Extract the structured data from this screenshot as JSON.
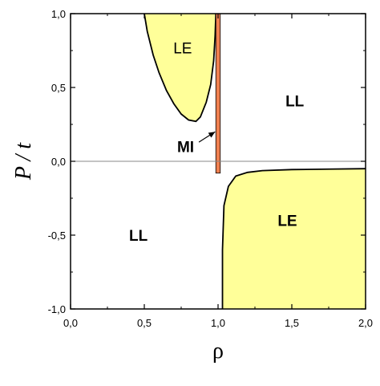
{
  "chart_data": {
    "type": "area",
    "title": "",
    "xlabel": "ρ",
    "ylabel": "P / t",
    "xlim": [
      0.0,
      2.0
    ],
    "ylim": [
      -1.0,
      1.0
    ],
    "x_ticks": [
      "0,0",
      "0,5",
      "1,0",
      "1,5",
      "2,0"
    ],
    "y_ticks": [
      "1,0",
      "0,5",
      "0,0",
      "-0,5",
      "-1,0"
    ],
    "grid": false,
    "colors": {
      "le_fill": "#ffff99",
      "mi_fill": "#f08050",
      "boundary": "#000000",
      "zero_line": "#888888"
    },
    "regions": [
      {
        "name": "LE",
        "label": "LE",
        "boundary": [
          [
            0.5,
            1.0
          ],
          [
            0.52,
            0.88
          ],
          [
            0.56,
            0.72
          ],
          [
            0.6,
            0.6
          ],
          [
            0.65,
            0.48
          ],
          [
            0.7,
            0.39
          ],
          [
            0.75,
            0.32
          ],
          [
            0.8,
            0.28
          ],
          [
            0.85,
            0.27
          ],
          [
            0.88,
            0.3
          ],
          [
            0.92,
            0.4
          ],
          [
            0.95,
            0.52
          ],
          [
            0.97,
            0.68
          ],
          [
            0.98,
            0.85
          ],
          [
            0.985,
            1.0
          ]
        ]
      },
      {
        "name": "LE",
        "label": "LE",
        "boundary": [
          [
            1.03,
            -1.0
          ],
          [
            1.03,
            -0.6
          ],
          [
            1.04,
            -0.3
          ],
          [
            1.07,
            -0.17
          ],
          [
            1.12,
            -0.1
          ],
          [
            1.2,
            -0.075
          ],
          [
            1.3,
            -0.063
          ],
          [
            1.5,
            -0.056
          ],
          [
            1.75,
            -0.053
          ],
          [
            2.0,
            -0.05
          ]
        ]
      },
      {
        "name": "MI",
        "label": "MI",
        "x": [
          0.985,
          1.015
        ],
        "y": [
          -0.08,
          1.0
        ]
      }
    ],
    "labels": {
      "le_upper": "LE",
      "le_lower": "LE",
      "ll_right": "LL",
      "ll_left": "LL",
      "mi": "MI"
    },
    "annotations": [
      {
        "text": "MI",
        "arrow_to": [
          0.98,
          0.2
        ]
      }
    ]
  }
}
